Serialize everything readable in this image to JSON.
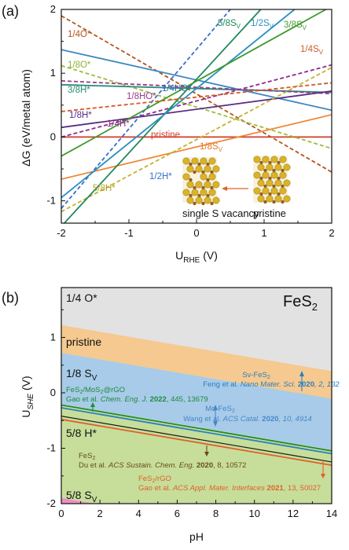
{
  "chart_data": [
    {
      "panel": "(a)",
      "type": "line",
      "xlabel": "URHE (V)",
      "ylabel": "ΔG (eV/metal atom)",
      "xlim": [
        -2,
        2
      ],
      "ylim": [
        -1.35,
        2
      ],
      "xticks": [
        "-2",
        "-1",
        "0",
        "1",
        "2"
      ],
      "yticks": [
        "2",
        "1",
        "0",
        "-1"
      ],
      "series": [
        {
          "name": "pristine",
          "color": "#d23a2a",
          "dash": false,
          "x": [
            -2,
            2
          ],
          "y": [
            0,
            0
          ]
        },
        {
          "name": "1/4O*",
          "color": "#b5531c",
          "dash": true,
          "x": [
            -2,
            2
          ],
          "y": [
            1.9,
            -0.55
          ]
        },
        {
          "name": "1/8O*",
          "color": "#9bbf3a",
          "dash": true,
          "x": [
            -2,
            2
          ],
          "y": [
            1.12,
            -0.18
          ]
        },
        {
          "name": "3/8H*",
          "color": "#2c8c78",
          "dash": false,
          "x": [
            -2,
            2
          ],
          "y": [
            0.82,
            0.7
          ]
        },
        {
          "name": "1/4HO*",
          "color": "#3c86bf",
          "dash": false,
          "x": [
            -2,
            2
          ],
          "y": [
            1.37,
            0.42
          ]
        },
        {
          "name": "1/8HO*",
          "color": "#9c3a8e",
          "dash": true,
          "x": [
            -2,
            2
          ],
          "y": [
            0.88,
            0.68
          ]
        },
        {
          "name": "1/8H*",
          "color": "#5a2d82",
          "dash": false,
          "x": [
            -2,
            2
          ],
          "y": [
            0.15,
            0.72
          ]
        },
        {
          "name": "1/4H*",
          "color": "#8e2b8a",
          "dash": true,
          "x": [
            -2,
            2
          ],
          "y": [
            0.0,
            1.13
          ]
        },
        {
          "name": "1/8SV",
          "color": "#f08a3c",
          "dash": false,
          "x": [
            -2,
            2
          ],
          "y": [
            -0.66,
            0.35
          ]
        },
        {
          "name": "1/2H*",
          "color": "#3a6fc9",
          "dash": true,
          "x": [
            -2,
            0.5
          ],
          "y": [
            -1.12,
            2.0
          ]
        },
        {
          "name": "5/8H*",
          "color": "#c2b230",
          "dash": true,
          "x": [
            -2,
            2
          ],
          "y": [
            -1.17,
            1.09
          ]
        },
        {
          "name": "5/8SV",
          "color": "#1f8a5c",
          "dash": false,
          "x": [
            -2,
            0.95
          ],
          "y": [
            -1.4,
            2.0
          ]
        },
        {
          "name": "1/2SV",
          "color": "#2a8fbf",
          "dash": false,
          "x": [
            -2,
            1.45
          ],
          "y": [
            -0.95,
            2.0
          ]
        },
        {
          "name": "3/8SV",
          "color": "#3f9a2c",
          "dash": false,
          "x": [
            -2,
            2
          ],
          "y": [
            -0.3,
            2.05
          ]
        },
        {
          "name": "1/4SV",
          "color": "#d25a2a",
          "dash": true,
          "x": [
            -2,
            2
          ],
          "y": [
            0.4,
            0.85
          ]
        }
      ],
      "labels": {
        "o4": "1/4O*",
        "o8": "1/8O*",
        "h38": "3/8H*",
        "ho4": "1/4HO*",
        "ho8": "1/8HO*",
        "h8": "1/8H*",
        "h4": "1/4H*",
        "pristine": "pristine",
        "s8": "1/8S",
        "h2": "1/2H*",
        "h58": "5/8H*",
        "s58": "5/8S",
        "s2": "1/2S",
        "s38": "3/8S",
        "s4": "1/4S",
        "sub": "V"
      },
      "inset": {
        "left": "single S vacancy",
        "right": "pristine"
      }
    },
    {
      "panel": "(b)",
      "type": "area",
      "title": "FeS2",
      "xlabel": "pH",
      "ylabel": "USHE (V)",
      "xlim": [
        0,
        14
      ],
      "ylim": [
        -2,
        1.9
      ],
      "xticks": [
        "0",
        "2",
        "4",
        "6",
        "8",
        "10",
        "12",
        "14"
      ],
      "yticks": [
        "1",
        "0",
        "-1",
        "-2"
      ],
      "slope_per_pH": -0.0591,
      "regions": [
        {
          "name": "1/4 O*",
          "color": "#e2e2e2"
        },
        {
          "name": "pristine",
          "color": "#f5c98f",
          "upper_at_pH0": 1.22,
          "lower_at_pH0": 0.72
        },
        {
          "name": "1/8 SV",
          "color": "#a7cbe8",
          "upper_at_pH0": 0.72,
          "lower_at_pH0": -0.2
        },
        {
          "name": "5/8 H*",
          "color": "#c6de9a",
          "upper_at_pH0": -0.2,
          "lower_at_pH0": -1.9
        },
        {
          "name": "5/8 SV",
          "color": "#ef8ec2",
          "upper_at_pH0": -1.9,
          "lower_at_pH0": -2.0
        }
      ],
      "boundary_lines": [
        {
          "name": "FeS2/MoS2@rGO",
          "color": "#1f8a3c",
          "at_pH0": -0.22
        },
        {
          "name": "Sv-FeS2",
          "color": "#2a7fc0",
          "at_pH0": -0.27
        },
        {
          "name": "FeS2",
          "color": "#1a1a1a",
          "at_pH0": -0.42
        },
        {
          "name": "FeS2/rGO",
          "color": "#e0602a",
          "at_pH0": -0.48
        }
      ],
      "annotations": {
        "r1": "1/4 O*",
        "r2": "pristine",
        "r3": "1/8 S",
        "r3sub": "V",
        "r4": "5/8 H*",
        "r5": "5/8 S",
        "r5sub": "V",
        "title_main": "FeS",
        "title_sub": "2",
        "sv_a": "Sv-FeS",
        "sv_b": "Feng et al. ",
        "sv_c": "Nano Mater. Sci.",
        "sv_d": " 2020",
        "sv_e": ", 2, 132",
        "mo_a": "Mo-FeS",
        "mo_b": "Wang et al. ",
        "mo_c": "ACS Catal.",
        "mo_d": " 2020",
        "mo_e": ", 10, 4914",
        "rgo_a": "FeS",
        "rgo_a2": "/MoS",
        "rgo_a3": "@rGO",
        "rgo_b": "Gao et al. ",
        "rgo_c": "Chem. Eng. J.",
        "rgo_d": " 2022",
        "rgo_e": ", 445, 13679",
        "du_a": "FeS",
        "du_b": "Du et al. ",
        "du_c": "ACS Sustain. Chem. Eng.",
        "du_d": " 2020",
        "du_e": ", 8, 10572",
        "gao_a": "FeS",
        "gao_a2": "/rGO",
        "gao_b": "Gao et al. ",
        "gao_c": "ACS Appl. Mater. Interfaces",
        "gao_d": " 2021",
        "gao_e": ", 13, 50027",
        "sub2": "2"
      }
    }
  ],
  "axis_text": {
    "a_ylabel": "ΔG (eV/metal atom)",
    "a_xlabel_main": "U",
    "a_xlabel_sub": "RHE",
    "a_xlabel_unit": " (V)",
    "b_ylabel_main": "U",
    "b_ylabel_sub": "SHE",
    "b_ylabel_unit": " (V)",
    "b_xlabel": "pH",
    "panel_a": "(a)",
    "panel_b": "(b)"
  },
  "inset_text": {
    "left": "single S vacancy",
    "right": "pristine"
  }
}
